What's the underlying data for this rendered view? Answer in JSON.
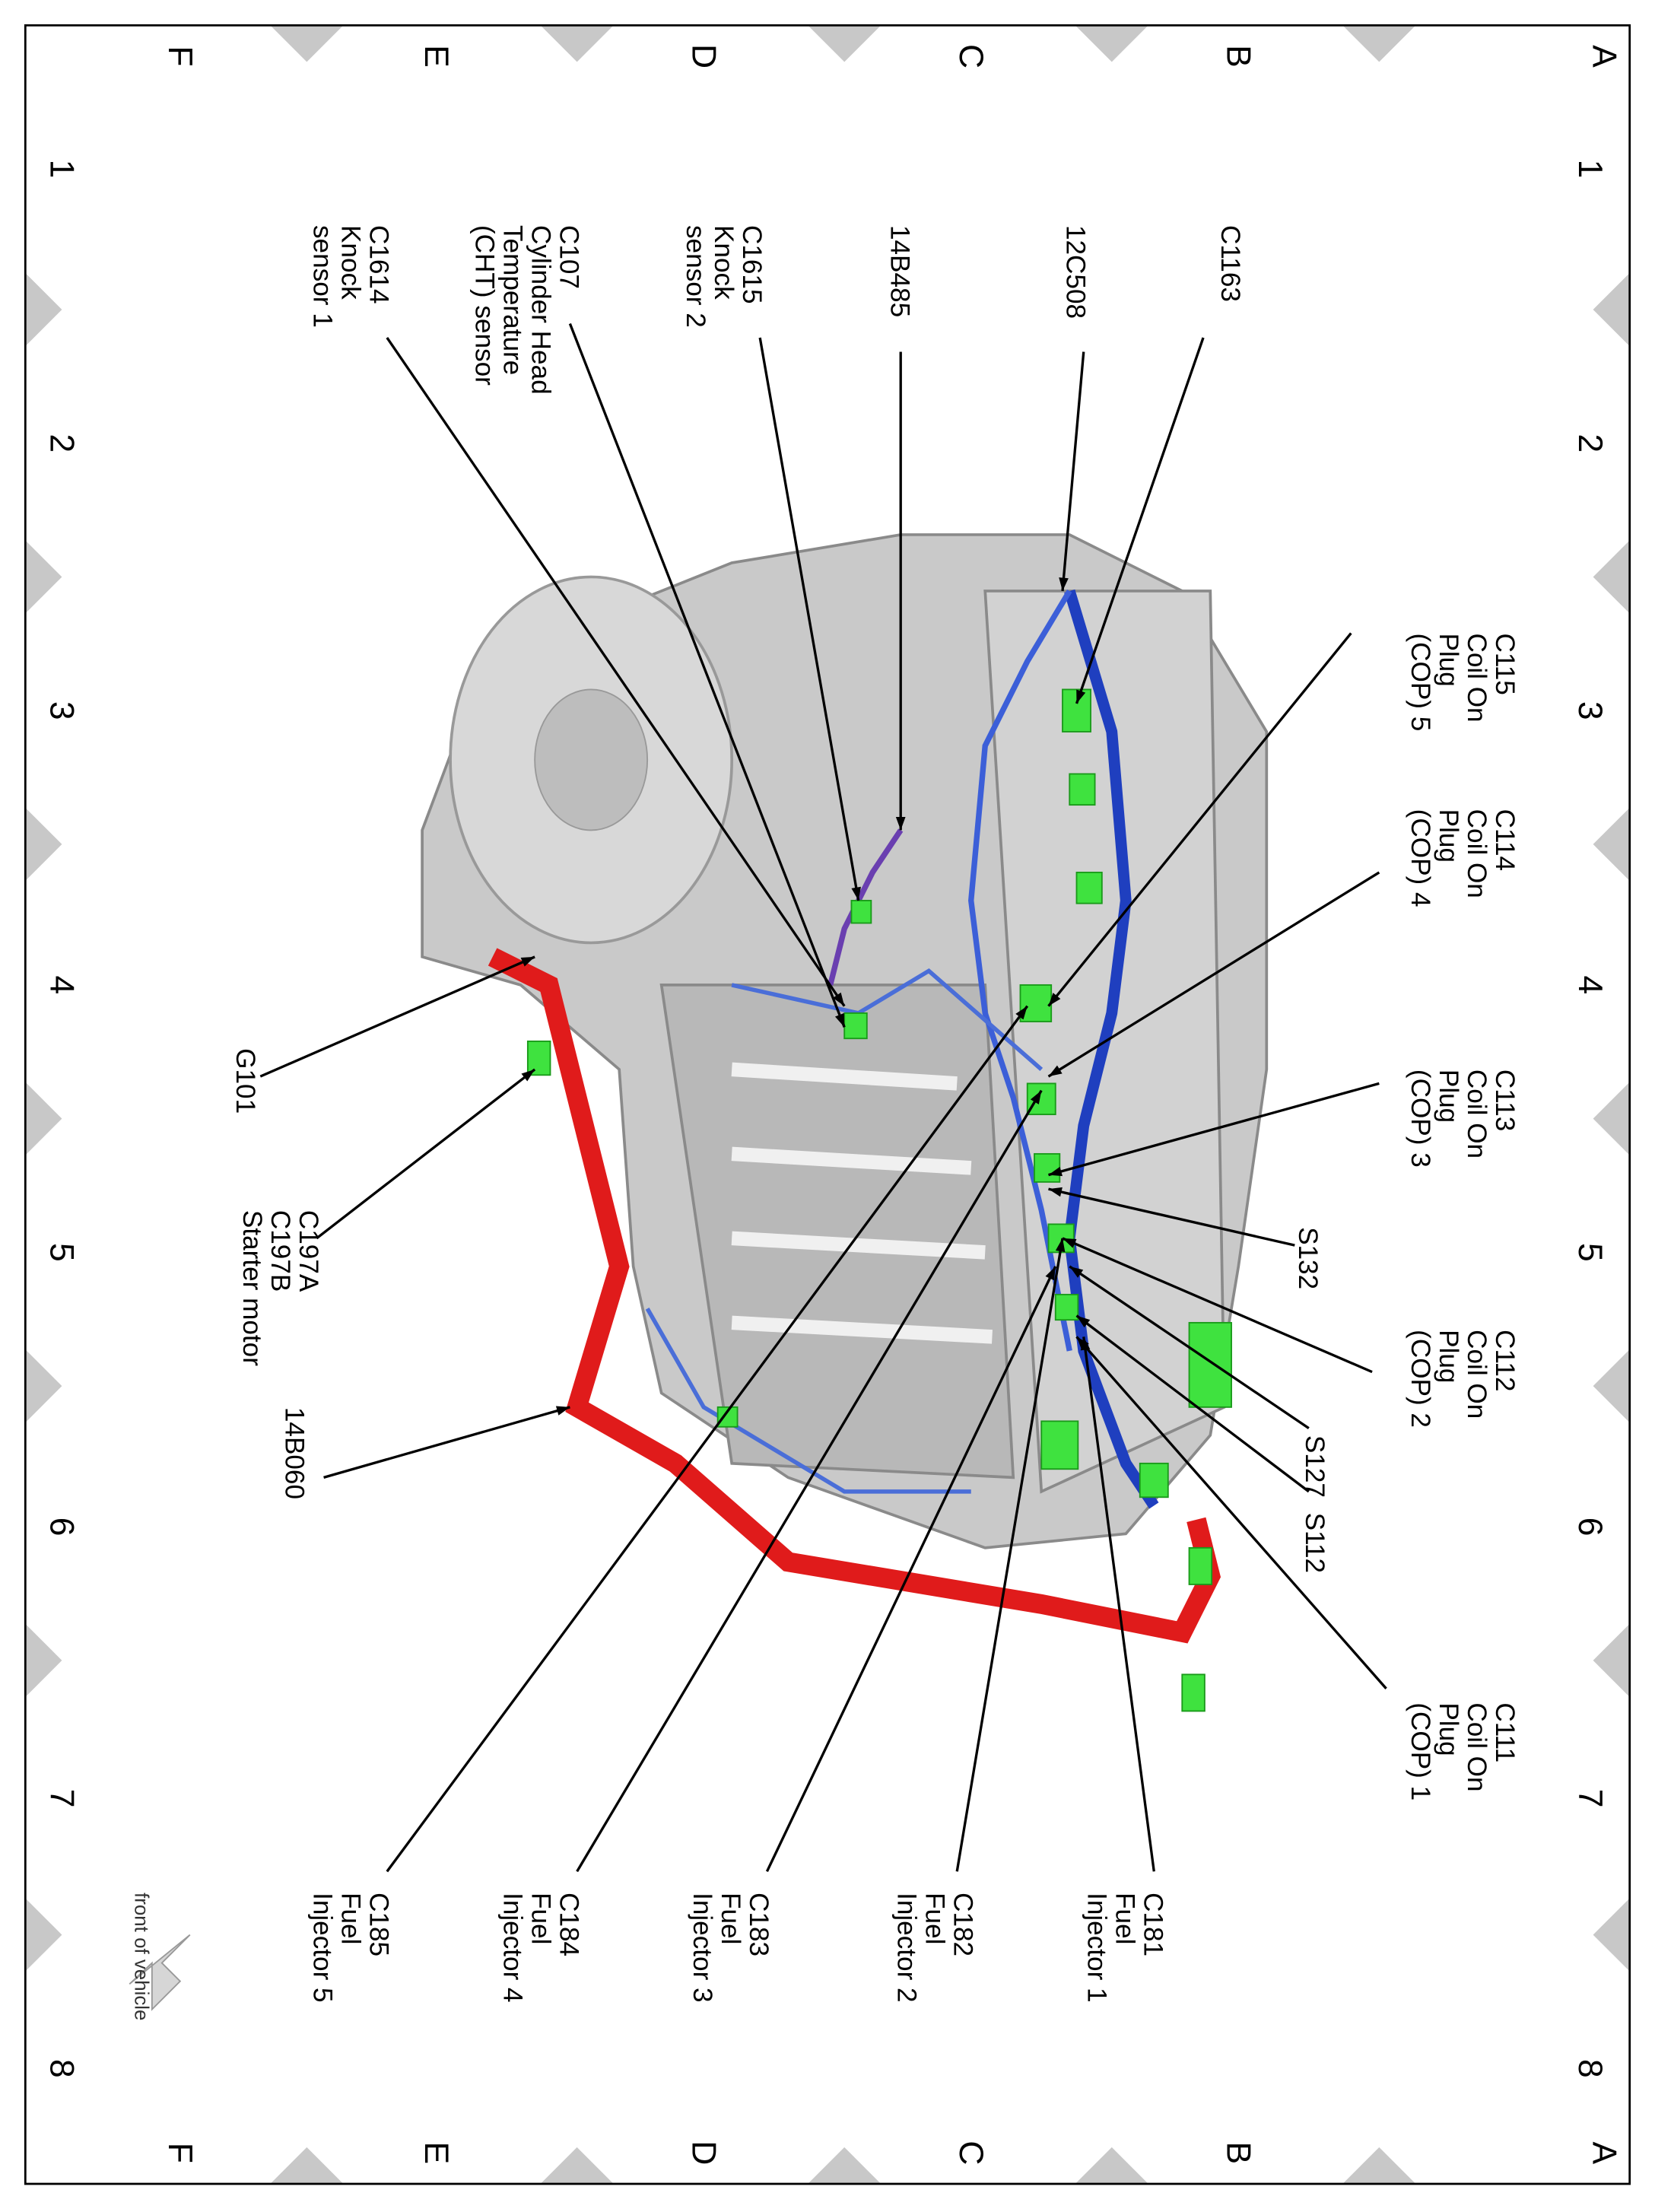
{
  "grid": {
    "rows": [
      "A",
      "B",
      "C",
      "D",
      "E",
      "F"
    ],
    "columns": [
      "1",
      "2",
      "3",
      "4",
      "5",
      "6",
      "7",
      "8"
    ]
  },
  "labels": [
    {
      "lines": [
        "C1163"
      ]
    },
    {
      "lines": [
        "12C508"
      ]
    },
    {
      "lines": [
        "14B485"
      ]
    },
    {
      "lines": [
        "C1615",
        "Knock",
        "sensor 2"
      ]
    },
    {
      "lines": [
        "C107",
        "Cylinder Head",
        "Temperature",
        "(CHT) sensor"
      ]
    },
    {
      "lines": [
        "C1614",
        "Knock",
        "sensor 1"
      ]
    },
    {
      "lines": [
        "C115",
        "Coil On",
        "Plug",
        "(COP) 5"
      ]
    },
    {
      "lines": [
        "C114",
        "Coil On",
        "Plug",
        "(COP) 4"
      ]
    },
    {
      "lines": [
        "C113",
        "Coil On",
        "Plug",
        "(COP) 3"
      ]
    },
    {
      "lines": [
        "S132"
      ]
    },
    {
      "lines": [
        "C112",
        "Coil On",
        "Plug",
        "(COP) 2"
      ]
    },
    {
      "lines": [
        "S127"
      ]
    },
    {
      "lines": [
        "S112"
      ]
    },
    {
      "lines": [
        "C111",
        "Coil On",
        "Plug",
        "(COP) 1"
      ]
    },
    {
      "lines": [
        "C181",
        "Fuel",
        "Injector 1"
      ]
    },
    {
      "lines": [
        "C182",
        "Fuel",
        "Injector 2"
      ]
    },
    {
      "lines": [
        "C183",
        "Fuel",
        "Injector 3"
      ]
    },
    {
      "lines": [
        "C184",
        "Fuel",
        "Injector 4"
      ]
    },
    {
      "lines": [
        "C185",
        "Fuel",
        "Injector 5"
      ]
    },
    {
      "lines": [
        "G101"
      ]
    },
    {
      "lines": [
        "C197A",
        "C197B",
        "Starter motor"
      ]
    },
    {
      "lines": [
        "14B060"
      ]
    }
  ],
  "front_note": "front of vehicle"
}
